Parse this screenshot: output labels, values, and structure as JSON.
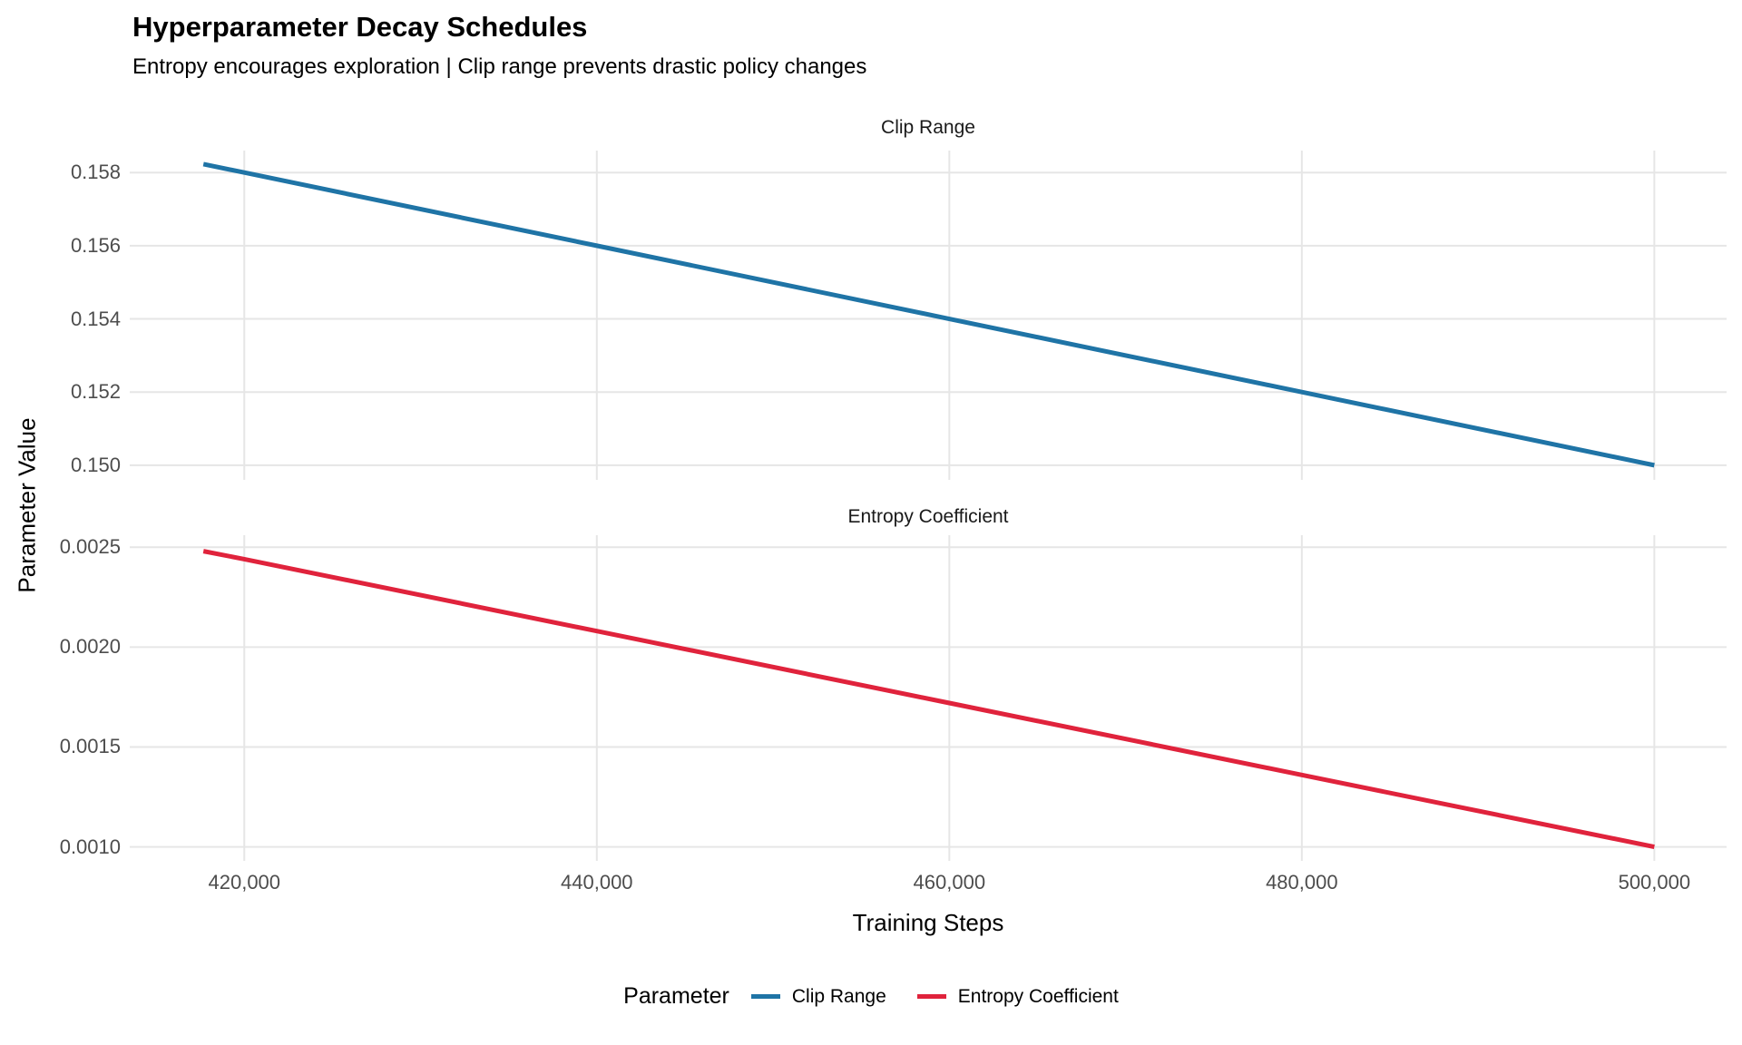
{
  "header": {
    "title": "Hyperparameter Decay Schedules",
    "subtitle": "Entropy encourages exploration | Clip range prevents drastic policy changes"
  },
  "colors": {
    "background": "#FFFFFF",
    "grid": "#E6E6E6",
    "tick_text": "#4D4D4D",
    "text": "#000000",
    "clip_range": "#1F74A6",
    "entropy_coefficient": "#E0233C"
  },
  "chart_data": {
    "type": "line",
    "title": "Hyperparameter Decay Schedules",
    "subtitle": "Entropy encourages exploration | Clip range prevents drastic policy changes",
    "xlabel": "Training Steps",
    "ylabel": "Parameter Value",
    "legend_title": "Parameter",
    "legend_position": "bottom",
    "grid": true,
    "facet_layout": "stacked-rows-free-y",
    "xlim": [
      413500,
      504100
    ],
    "x_tick_values": [
      420000,
      440000,
      460000,
      480000,
      500000
    ],
    "x_tick_labels": [
      "420,000",
      "440,000",
      "460,000",
      "480,000",
      "500,000"
    ],
    "facets": [
      {
        "name": "Clip Range",
        "color": "#1F74A6",
        "x": [
          417680,
          420000,
          440000,
          460000,
          480000,
          500000
        ],
        "y": [
          0.15823,
          0.158,
          0.156,
          0.154,
          0.152,
          0.15
        ],
        "ylim": [
          0.1496,
          0.1586
        ],
        "y_tick_values": [
          0.158,
          0.156,
          0.154,
          0.152,
          0.15
        ],
        "y_tick_labels": [
          "0.158",
          "0.156",
          "0.154",
          "0.152",
          "0.150"
        ]
      },
      {
        "name": "Entropy Coefficient",
        "color": "#E0233C",
        "x": [
          417680,
          420000,
          440000,
          460000,
          480000,
          500000
        ],
        "y": [
          0.00248,
          0.00244,
          0.00208,
          0.00172,
          0.00136,
          0.001
        ],
        "ylim": [
          0.00093,
          0.00256
        ],
        "y_tick_values": [
          0.0025,
          0.002,
          0.0015,
          0.001
        ],
        "y_tick_labels": [
          "0.0025",
          "0.0020",
          "0.0015",
          "0.0010"
        ]
      }
    ]
  }
}
